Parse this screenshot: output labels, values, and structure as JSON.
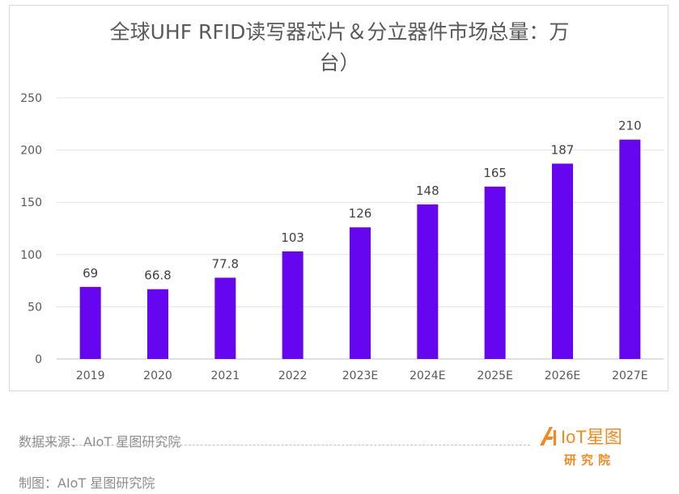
{
  "chart_data": {
    "type": "bar",
    "title_lines": [
      "全球UHF RFID读写器芯片＆分立器件市场总量：万",
      "台）"
    ],
    "categories": [
      "2019",
      "2020",
      "2021",
      "2022",
      "2023E",
      "2024E",
      "2025E",
      "2026E",
      "2027E"
    ],
    "values": [
      69,
      66.8,
      77.8,
      103,
      126,
      148,
      165,
      187,
      210
    ],
    "data_labels": [
      "69",
      "66.8",
      "77.8",
      "103",
      "126",
      "148",
      "165",
      "187",
      "210"
    ],
    "yticks": [
      "0",
      "50",
      "100",
      "150",
      "200",
      "250"
    ],
    "ylim": [
      0,
      250
    ],
    "grid": true,
    "legend": "none",
    "bar_color": "#6606f0"
  },
  "footer": {
    "source": "数据来源：AIoT 星图研究院",
    "maker": "制图：AIoT 星图研究院"
  },
  "logo": {
    "wordmark": "IoT星图",
    "subtitle": "研究院",
    "color": "#f5891f"
  }
}
